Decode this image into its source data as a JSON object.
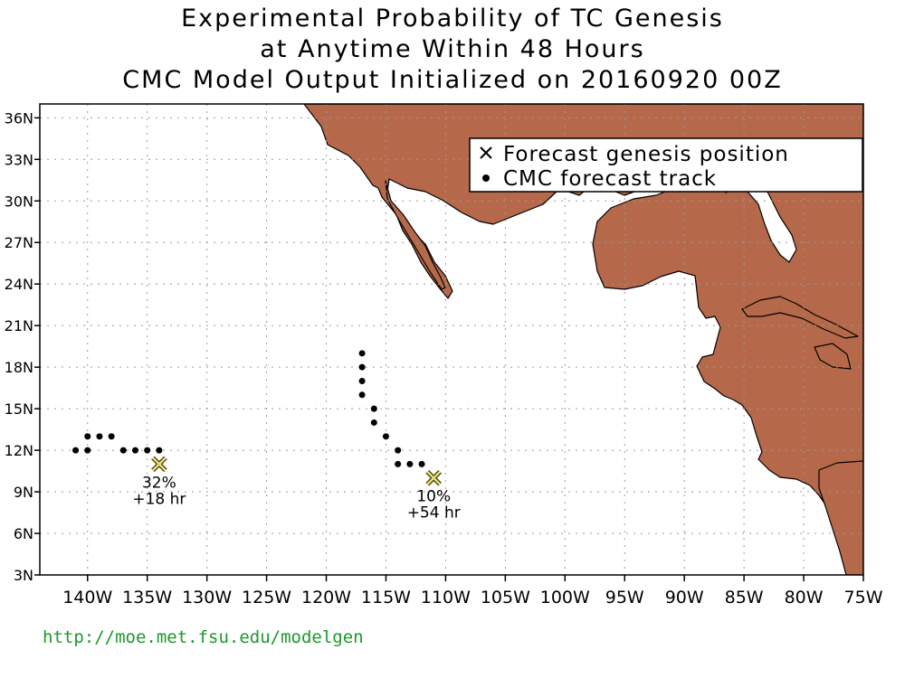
{
  "title": {
    "line1": "Experimental Probability of TC Genesis",
    "line2": "at Anytime Within 48 Hours",
    "line3": "CMC Model Output Initialized on 20160920 00Z"
  },
  "map": {
    "lon_range": [
      -144,
      -75
    ],
    "lat_range": [
      3,
      37
    ],
    "land_color": "#b5694a",
    "grid": true,
    "lon_ticks": [
      {
        "value": -140,
        "label": "140W"
      },
      {
        "value": -135,
        "label": "135W"
      },
      {
        "value": -130,
        "label": "130W"
      },
      {
        "value": -125,
        "label": "125W"
      },
      {
        "value": -120,
        "label": "120W"
      },
      {
        "value": -115,
        "label": "115W"
      },
      {
        "value": -110,
        "label": "110W"
      },
      {
        "value": -105,
        "label": "105W"
      },
      {
        "value": -100,
        "label": "100W"
      },
      {
        "value": -95,
        "label": "95W"
      },
      {
        "value": -90,
        "label": "90W"
      },
      {
        "value": -85,
        "label": "85W"
      },
      {
        "value": -80,
        "label": "80W"
      },
      {
        "value": -75,
        "label": "75W"
      }
    ],
    "lat_ticks": [
      {
        "value": 3,
        "label": "3N"
      },
      {
        "value": 6,
        "label": "6N"
      },
      {
        "value": 9,
        "label": "9N"
      },
      {
        "value": 12,
        "label": "12N"
      },
      {
        "value": 15,
        "label": "15N"
      },
      {
        "value": 18,
        "label": "18N"
      },
      {
        "value": 21,
        "label": "21N"
      },
      {
        "value": 24,
        "label": "24N"
      },
      {
        "value": 27,
        "label": "27N"
      },
      {
        "value": 30,
        "label": "30N"
      },
      {
        "value": 33,
        "label": "33N"
      },
      {
        "value": 36,
        "label": "36N"
      }
    ]
  },
  "legend": {
    "genesis_label": "Forecast genesis position",
    "track_label": "CMC forecast track",
    "placement": "top-right"
  },
  "tracks": [
    {
      "points": [
        [
          -141,
          12
        ],
        [
          -140,
          12
        ],
        [
          -140,
          13
        ],
        [
          -139,
          13
        ],
        [
          -138,
          13
        ],
        [
          -137,
          12
        ],
        [
          -136,
          12
        ],
        [
          -135,
          12
        ],
        [
          -134,
          12
        ]
      ],
      "genesis": {
        "lon": -134,
        "lat": 11,
        "prob": "32%",
        "time": "+18 hr"
      }
    },
    {
      "points": [
        [
          -117,
          19
        ],
        [
          -117,
          18
        ],
        [
          -117,
          17
        ],
        [
          -117,
          16
        ],
        [
          -116,
          15
        ],
        [
          -116,
          14
        ],
        [
          -115,
          13
        ],
        [
          -114,
          12
        ],
        [
          -114,
          11
        ],
        [
          -113,
          11
        ],
        [
          -112,
          11
        ]
      ],
      "genesis": {
        "lon": -111,
        "lat": 10,
        "prob": "10%",
        "time": "+54 hr"
      }
    }
  ],
  "footer": {
    "url": "http://moe.met.fsu.edu/modelgen"
  }
}
